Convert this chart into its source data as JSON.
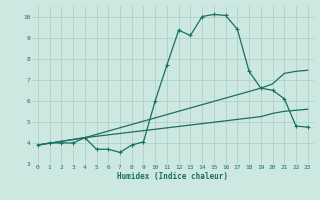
{
  "xlabel": "Humidex (Indice chaleur)",
  "xlim": [
    -0.5,
    23.5
  ],
  "ylim": [
    3,
    10.5
  ],
  "yticks": [
    3,
    4,
    5,
    6,
    7,
    8,
    9,
    10
  ],
  "xticks": [
    0,
    1,
    2,
    3,
    4,
    5,
    6,
    7,
    8,
    9,
    10,
    11,
    12,
    13,
    14,
    15,
    16,
    17,
    18,
    19,
    20,
    21,
    22,
    23
  ],
  "bg_color": "#cce8e0",
  "grid_color": "#aaccc4",
  "line_color": "#1a6e64",
  "line1_x": [
    0,
    1,
    2,
    3,
    4,
    5,
    6,
    7,
    8,
    9,
    10,
    11,
    12,
    13,
    14,
    15,
    16,
    17,
    18,
    19,
    20,
    21,
    22,
    23
  ],
  "line1_y": [
    3.9,
    4.0,
    4.0,
    4.0,
    4.25,
    3.7,
    3.7,
    3.55,
    3.9,
    4.05,
    6.0,
    7.7,
    9.35,
    9.1,
    10.0,
    10.1,
    10.05,
    9.4,
    7.4,
    6.6,
    6.5,
    6.1,
    4.8,
    4.75
  ],
  "line2_x": [
    0,
    4,
    19,
    20,
    21,
    22,
    23
  ],
  "line2_y": [
    3.9,
    4.25,
    6.6,
    6.8,
    7.3,
    7.4,
    7.45
  ],
  "line3_x": [
    0,
    4,
    19,
    20,
    21,
    22,
    23
  ],
  "line3_y": [
    3.9,
    4.25,
    5.25,
    5.4,
    5.5,
    5.55,
    5.6
  ]
}
